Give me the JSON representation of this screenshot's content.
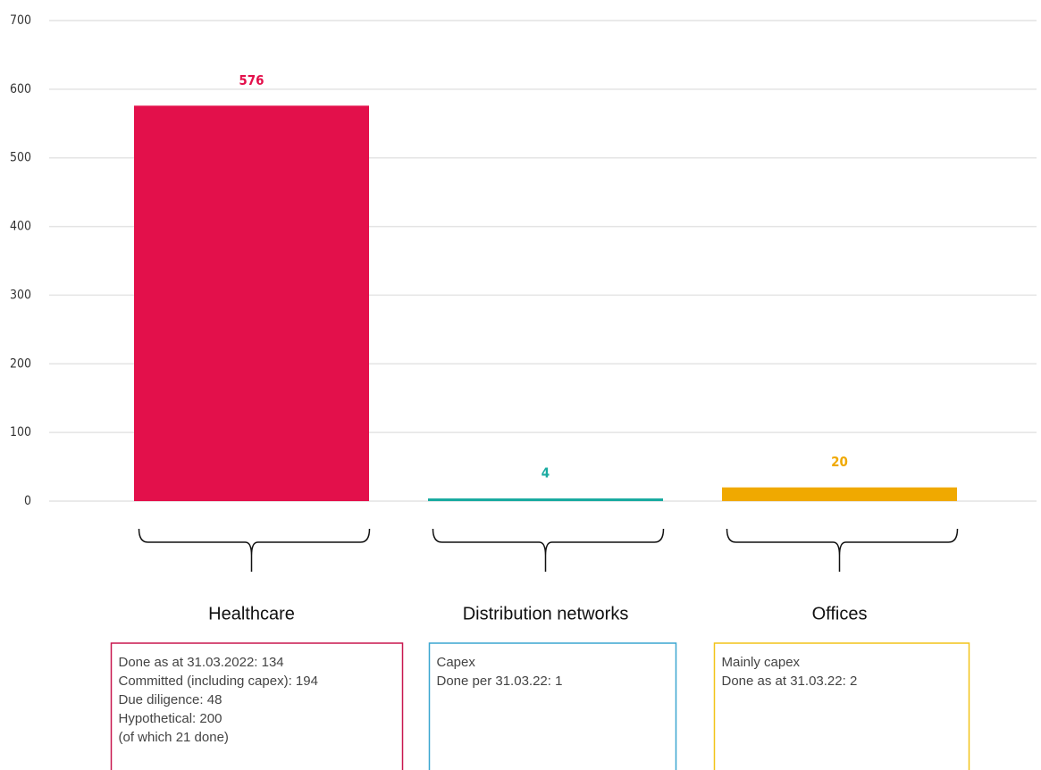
{
  "chart_data": {
    "type": "bar",
    "categories": [
      "Healthcare",
      "Distribution networks",
      "Offices"
    ],
    "values": [
      576,
      4,
      20
    ],
    "colors": [
      "#e3104b",
      "#1aaba1",
      "#f0a900"
    ],
    "note_colors": [
      "#c8174f",
      "#3aa6d0",
      "#f2c419"
    ],
    "notes": [
      [
        "Done as at 31.03.2022: 134",
        "Committed (including capex): 194",
        "Due diligence: 48",
        "Hypothetical: 200",
        "(of which 21 done)"
      ],
      [
        "Capex",
        "Done per 31.03.22: 1"
      ],
      [
        "Mainly capex",
        "Done as at 31.03.22: 2"
      ]
    ],
    "ylim": [
      0,
      700
    ],
    "yticks": [
      0,
      100,
      200,
      300,
      400,
      500,
      600,
      700
    ],
    "grid": true
  }
}
